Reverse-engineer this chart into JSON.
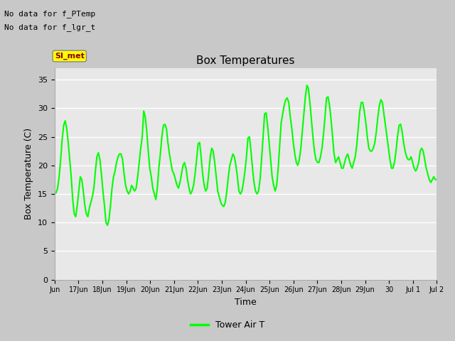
{
  "title": "Box Temperatures",
  "xlabel": "Time",
  "ylabel": "Box Temperature (C)",
  "ylim": [
    0,
    37
  ],
  "yticks": [
    0,
    5,
    10,
    15,
    20,
    25,
    30,
    35
  ],
  "fig_bg_color": "#c8c8c8",
  "plot_bg_color": "#e8e8e8",
  "line_color": "#00ff00",
  "line_width": 1.5,
  "no_data_text1": "No data for f_PTemp",
  "no_data_text2": "No data for f_lgr_t",
  "si_met_label": "SI_met",
  "legend_label": "Tower Air T",
  "grid_color": "white",
  "xtick_labels": [
    "Jun",
    "17Jun",
    "18Jun",
    "19Jun",
    "20Jun",
    "21Jun",
    "22Jun",
    "23Jun",
    "24Jun",
    "25Jun",
    "26Jun",
    "27Jun",
    "28Jun",
    "29Jun",
    "30",
    "Jul 1",
    "Jul 2"
  ],
  "temp_data": [
    15.0,
    15.2,
    16.0,
    18.0,
    21.0,
    24.5,
    27.0,
    27.8,
    26.5,
    24.0,
    21.0,
    18.0,
    14.0,
    11.5,
    11.0,
    13.0,
    15.5,
    18.0,
    17.5,
    15.5,
    13.0,
    11.5,
    11.0,
    12.5,
    13.5,
    14.5,
    16.0,
    19.0,
    21.5,
    22.2,
    21.0,
    18.5,
    15.5,
    13.0,
    10.0,
    9.5,
    10.5,
    13.0,
    16.0,
    18.0,
    19.0,
    20.5,
    21.5,
    22.0,
    22.0,
    21.0,
    18.5,
    16.5,
    15.5,
    15.0,
    15.5,
    16.5,
    16.0,
    15.5,
    16.0,
    18.0,
    20.5,
    23.0,
    25.0,
    29.5,
    28.5,
    26.0,
    22.5,
    19.5,
    18.0,
    16.0,
    15.0,
    14.0,
    16.0,
    19.5,
    22.0,
    25.0,
    27.0,
    27.2,
    26.5,
    24.0,
    22.0,
    20.5,
    19.0,
    18.5,
    17.5,
    16.5,
    16.0,
    17.0,
    18.5,
    20.0,
    20.5,
    19.5,
    17.5,
    16.0,
    15.0,
    15.5,
    16.5,
    18.5,
    21.0,
    23.8,
    24.0,
    21.5,
    18.5,
    16.5,
    15.5,
    16.0,
    18.5,
    21.5,
    23.0,
    22.5,
    20.5,
    18.0,
    15.5,
    14.5,
    13.5,
    13.0,
    12.8,
    13.5,
    15.5,
    18.0,
    20.0,
    21.0,
    22.0,
    21.5,
    20.0,
    18.0,
    15.5,
    15.0,
    15.5,
    17.0,
    19.0,
    21.5,
    24.8,
    25.0,
    22.5,
    19.5,
    17.0,
    15.5,
    15.0,
    15.5,
    17.5,
    21.0,
    25.0,
    29.0,
    29.2,
    27.0,
    24.0,
    21.0,
    18.0,
    16.5,
    15.5,
    16.5,
    19.5,
    23.5,
    27.5,
    29.0,
    30.5,
    31.5,
    31.8,
    31.0,
    28.5,
    26.5,
    24.0,
    22.0,
    20.5,
    20.0,
    21.0,
    23.0,
    26.0,
    29.0,
    32.0,
    34.0,
    33.5,
    31.0,
    28.0,
    25.0,
    22.5,
    21.0,
    20.5,
    20.5,
    21.5,
    23.0,
    25.5,
    28.5,
    31.8,
    32.0,
    30.5,
    28.0,
    25.0,
    22.0,
    20.5,
    21.0,
    21.5,
    20.5,
    19.5,
    19.5,
    20.5,
    21.5,
    22.0,
    21.0,
    20.0,
    19.5,
    20.5,
    21.5,
    23.5,
    26.5,
    29.5,
    31.0,
    31.0,
    29.5,
    27.5,
    25.0,
    23.0,
    22.5,
    22.5,
    23.0,
    24.0,
    26.0,
    28.5,
    30.5,
    31.5,
    31.0,
    29.0,
    27.0,
    25.0,
    23.0,
    21.0,
    19.5,
    19.5,
    20.5,
    22.5,
    25.0,
    27.0,
    27.2,
    26.0,
    24.0,
    22.5,
    21.5,
    21.0,
    21.0,
    21.5,
    20.5,
    19.5,
    19.0,
    19.5,
    20.5,
    22.5,
    23.0,
    22.5,
    21.0,
    19.5,
    18.5,
    17.5,
    17.0,
    17.5,
    18.0,
    17.5,
    17.5
  ]
}
